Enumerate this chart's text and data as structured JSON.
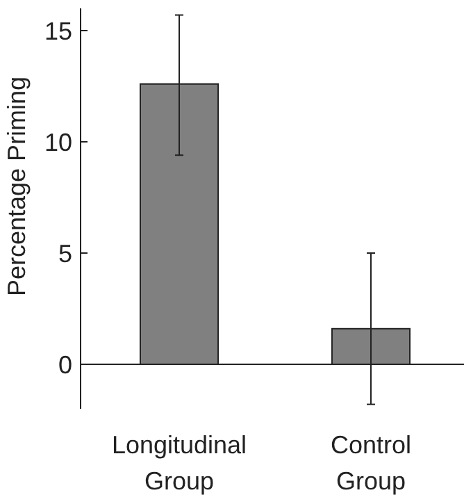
{
  "chart_data": {
    "type": "bar",
    "ylabel": "Percentage Priming",
    "categories": [
      "Longitudinal\nGroup",
      "Control\nGroup"
    ],
    "values": [
      12.6,
      1.6
    ],
    "color": "#808080",
    "errors": [
      [
        9.4,
        15.7
      ],
      [
        -1.8,
        5.0
      ]
    ],
    "ylim": [
      -2,
      16
    ],
    "yticks": [
      0,
      5,
      10,
      15
    ]
  }
}
